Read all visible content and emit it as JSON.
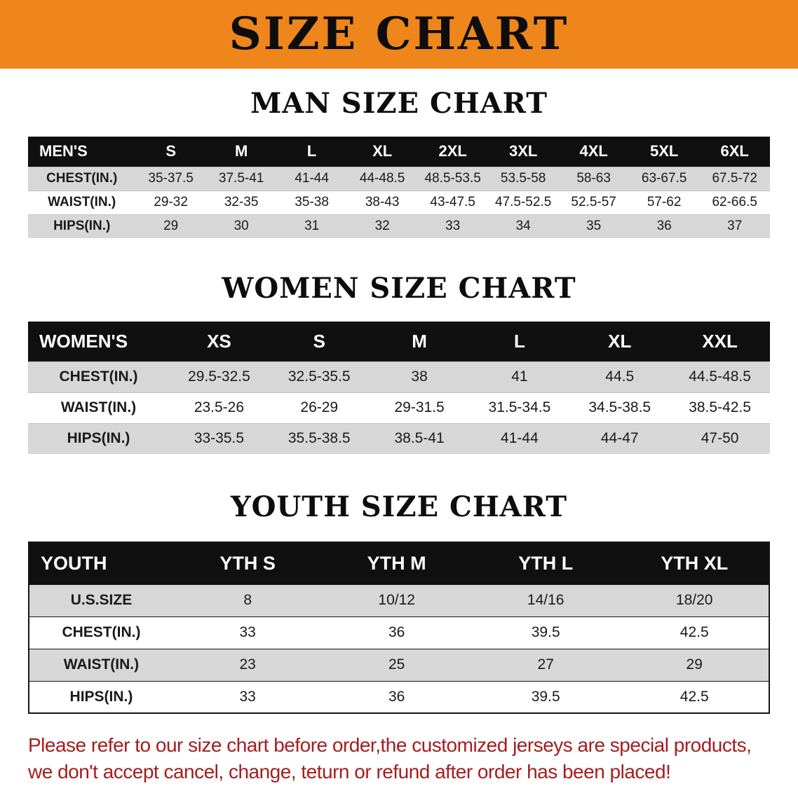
{
  "banner": {
    "title": "SIZE CHART"
  },
  "men": {
    "heading": "MAN SIZE CHART",
    "header": [
      "MEN'S",
      "S",
      "M",
      "L",
      "XL",
      "2XL",
      "3XL",
      "4XL",
      "5XL",
      "6XL"
    ],
    "rows": [
      [
        "CHEST(IN.)",
        "35-37.5",
        "37.5-41",
        "41-44",
        "44-48.5",
        "48.5-53.5",
        "53.5-58",
        "58-63",
        "63-67.5",
        "67.5-72"
      ],
      [
        "WAIST(IN.)",
        "29-32",
        "32-35",
        "35-38",
        "38-43",
        "43-47.5",
        "47.5-52.5",
        "52.5-57",
        "57-62",
        "62-66.5"
      ],
      [
        "HIPS(IN.)",
        "29",
        "30",
        "31",
        "32",
        "33",
        "34",
        "35",
        "36",
        "37"
      ]
    ]
  },
  "women": {
    "heading": "WOMEN SIZE CHART",
    "header": [
      "WOMEN'S",
      "XS",
      "S",
      "M",
      "L",
      "XL",
      "XXL"
    ],
    "rows": [
      [
        "CHEST(IN.)",
        "29.5-32.5",
        "32.5-35.5",
        "38",
        "41",
        "44.5",
        "44.5-48.5"
      ],
      [
        "WAIST(IN.)",
        "23.5-26",
        "26-29",
        "29-31.5",
        "31.5-34.5",
        "34.5-38.5",
        "38.5-42.5"
      ],
      [
        "HIPS(IN.)",
        "33-35.5",
        "35.5-38.5",
        "38.5-41",
        "41-44",
        "44-47",
        "47-50"
      ]
    ]
  },
  "youth": {
    "heading": "YOUTH SIZE CHART",
    "header": [
      "YOUTH",
      "YTH S",
      "YTH M",
      "YTH L",
      "YTH XL"
    ],
    "rows": [
      [
        "U.S.SIZE",
        "8",
        "10/12",
        "14/16",
        "18/20"
      ],
      [
        "CHEST(IN.)",
        "33",
        "36",
        "39.5",
        "42.5"
      ],
      [
        "WAIST(IN.)",
        "23",
        "25",
        "27",
        "29"
      ],
      [
        "HIPS(IN.)",
        "33",
        "36",
        "39.5",
        "42.5"
      ]
    ]
  },
  "footer": {
    "line1": "Please refer to our size chart before order,the customized jerseys are special products,",
    "line2": "we don't accept cancel, change, teturn or refund after order has been placed!"
  },
  "colors": {
    "banner_orange": "#EE861B",
    "table_header_black": "#101010",
    "row_gray": "#D7D7D7",
    "row_white": "#FFFFFF",
    "footer_red": "#A51D1D"
  }
}
